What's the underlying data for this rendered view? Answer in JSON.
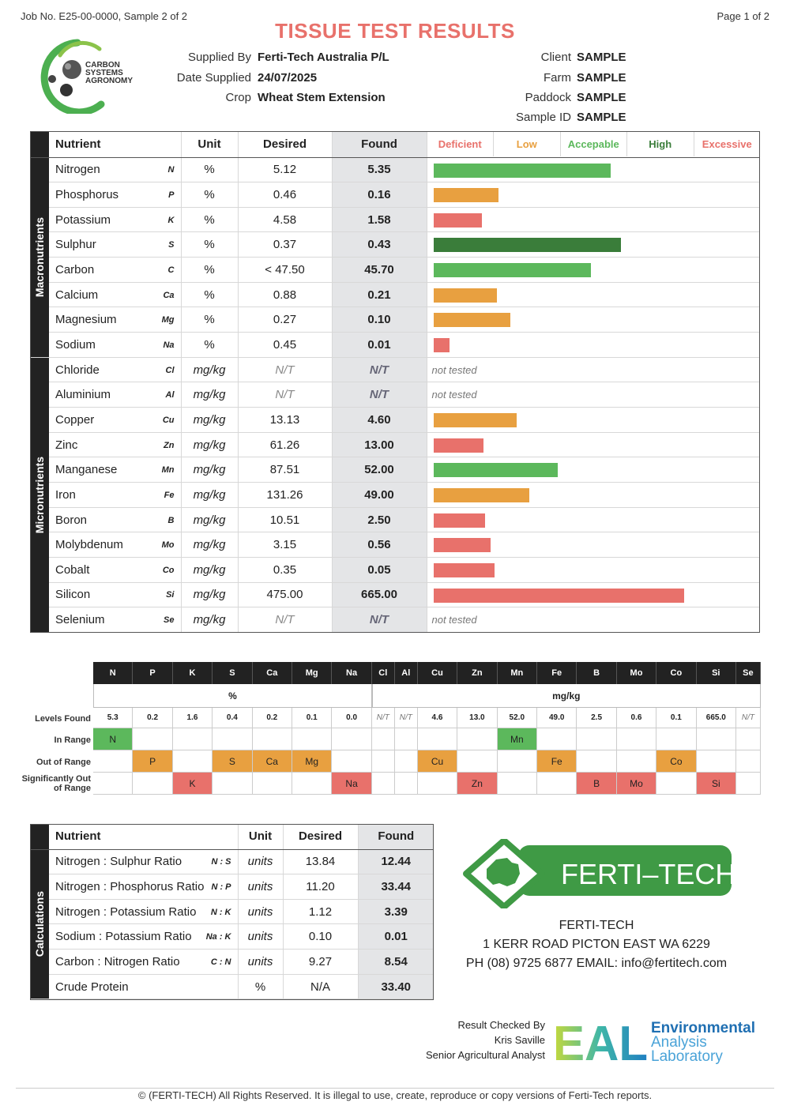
{
  "header": {
    "job": "Job No. E25-00-0000, Sample 2 of 2",
    "page": "Page 1 of 2",
    "title": "TISSUE TEST RESULTS",
    "logo_text": [
      "CARBON",
      "SYSTEMS",
      "AGRONOMY"
    ]
  },
  "meta": {
    "supplied_by_label": "Supplied By",
    "supplied_by": "Ferti-Tech Australia P/L",
    "date_label": "Date Supplied",
    "date": "24/07/2025",
    "crop_label": "Crop",
    "crop": "Wheat Stem Extension",
    "client_label": "Client",
    "client": "SAMPLE",
    "farm_label": "Farm",
    "farm": "SAMPLE",
    "paddock_label": "Paddock",
    "paddock": "SAMPLE",
    "sample_label": "Sample ID",
    "sample": "SAMPLE"
  },
  "main_table": {
    "headers": {
      "nutrient": "Nutrient",
      "unit": "Unit",
      "desired": "Desired",
      "found": "Found"
    },
    "legend": [
      "Deficient",
      "Low",
      "Accepable",
      "High",
      "Excessive"
    ],
    "legend_colors": [
      "#e8716b",
      "#e8a040",
      "#5cb85c",
      "#3a7d3a",
      "#e8716b"
    ],
    "macro_label": "Macronutrients",
    "micro_label": "Micronutrients",
    "not_tested": "not tested",
    "macro": [
      {
        "name": "Nitrogen",
        "sym": "N",
        "unit": "%",
        "desired": "5.12",
        "found": "5.35",
        "level": 0.556,
        "color": "#5cb85c"
      },
      {
        "name": "Phosphorus",
        "sym": "P",
        "unit": "%",
        "desired": "0.46",
        "found": "0.16",
        "level": 0.204,
        "color": "#e8a040"
      },
      {
        "name": "Potassium",
        "sym": "K",
        "unit": "%",
        "desired": "4.58",
        "found": "1.58",
        "level": 0.152,
        "color": "#e8716b"
      },
      {
        "name": "Sulphur",
        "sym": "S",
        "unit": "%",
        "desired": "0.37",
        "found": "0.43",
        "level": 0.588,
        "color": "#3a7d3a"
      },
      {
        "name": "Carbon",
        "sym": "C",
        "unit": "%",
        "desired": "< 47.50",
        "found": "45.70",
        "level": 0.493,
        "color": "#5cb85c"
      },
      {
        "name": "Calcium",
        "sym": "Ca",
        "unit": "%",
        "desired": "0.88",
        "found": "0.21",
        "level": 0.199,
        "color": "#e8a040"
      },
      {
        "name": "Magnesium",
        "sym": "Mg",
        "unit": "%",
        "desired": "0.27",
        "found": "0.10",
        "level": 0.242,
        "color": "#e8a040"
      },
      {
        "name": "Sodium",
        "sym": "Na",
        "unit": "%",
        "desired": "0.45",
        "found": "0.01",
        "level": 0.05,
        "color": "#e8716b"
      }
    ],
    "micro": [
      {
        "name": "Chloride",
        "sym": "Cl",
        "unit": "mg/kg",
        "desired": "N/T",
        "found": "N/T",
        "level": null,
        "color": ""
      },
      {
        "name": "Aluminium",
        "sym": "Al",
        "unit": "mg/kg",
        "desired": "N/T",
        "found": "N/T",
        "level": null,
        "color": ""
      },
      {
        "name": "Copper",
        "sym": "Cu",
        "unit": "mg/kg",
        "desired": "13.13",
        "found": "4.60",
        "level": 0.26,
        "color": "#e8a040"
      },
      {
        "name": "Zinc",
        "sym": "Zn",
        "unit": "mg/kg",
        "desired": "61.26",
        "found": "13.00",
        "level": 0.156,
        "color": "#e8716b"
      },
      {
        "name": "Manganese",
        "sym": "Mn",
        "unit": "mg/kg",
        "desired": "87.51",
        "found": "52.00",
        "level": 0.391,
        "color": "#5cb85c"
      },
      {
        "name": "Iron",
        "sym": "Fe",
        "unit": "mg/kg",
        "desired": "131.26",
        "found": "49.00",
        "level": 0.301,
        "color": "#e8a040"
      },
      {
        "name": "Boron",
        "sym": "B",
        "unit": "mg/kg",
        "desired": "10.51",
        "found": "2.50",
        "level": 0.161,
        "color": "#e8716b"
      },
      {
        "name": "Molybdenum",
        "sym": "Mo",
        "unit": "mg/kg",
        "desired": "3.15",
        "found": "0.56",
        "level": 0.18,
        "color": "#e8716b"
      },
      {
        "name": "Cobalt",
        "sym": "Co",
        "unit": "mg/kg",
        "desired": "0.35",
        "found": "0.05",
        "level": 0.192,
        "color": "#e8716b"
      },
      {
        "name": "Silicon",
        "sym": "Si",
        "unit": "mg/kg",
        "desired": "475.00",
        "found": "665.00",
        "level": 0.787,
        "color": "#e8716b"
      },
      {
        "name": "Selenium",
        "sym": "Se",
        "unit": "mg/kg",
        "desired": "N/T",
        "found": "N/T",
        "level": null,
        "color": ""
      }
    ]
  },
  "summary": {
    "row_labels": {
      "levels": "Levels Found",
      "in_range": "In Range",
      "out": "Out of Range",
      "sig": "Significantly Out of Range"
    },
    "unit_pct": "%",
    "unit_mgkg": "mg/kg",
    "columns": [
      {
        "sym": "N",
        "level": "5.3",
        "cat": 1
      },
      {
        "sym": "P",
        "level": "0.2",
        "cat": 2
      },
      {
        "sym": "K",
        "level": "1.6",
        "cat": 3
      },
      {
        "sym": "S",
        "level": "0.4",
        "cat": 2
      },
      {
        "sym": "Ca",
        "level": "0.2",
        "cat": 2
      },
      {
        "sym": "Mg",
        "level": "0.1",
        "cat": 2
      },
      {
        "sym": "Na",
        "level": "0.0",
        "cat": 3
      },
      {
        "sym": "Cl",
        "level": "N/T",
        "cat": 0
      },
      {
        "sym": "Al",
        "level": "N/T",
        "cat": 0
      },
      {
        "sym": "Cu",
        "level": "4.6",
        "cat": 2
      },
      {
        "sym": "Zn",
        "level": "13.0",
        "cat": 3
      },
      {
        "sym": "Mn",
        "level": "52.0",
        "cat": 1
      },
      {
        "sym": "Fe",
        "level": "49.0",
        "cat": 2
      },
      {
        "sym": "B",
        "level": "2.5",
        "cat": 3
      },
      {
        "sym": "Mo",
        "level": "0.6",
        "cat": 3
      },
      {
        "sym": "Co",
        "level": "0.1",
        "cat": 2
      },
      {
        "sym": "Si",
        "level": "665.0",
        "cat": 3
      },
      {
        "sym": "Se",
        "level": "N/T",
        "cat": 0
      }
    ],
    "cat_colors": [
      "",
      "#5cb85c",
      "#e8a040",
      "#e8716b"
    ]
  },
  "calc_table": {
    "label": "Calculations",
    "headers": {
      "nutrient": "Nutrient",
      "unit": "Unit",
      "desired": "Desired",
      "found": "Found"
    },
    "rows": [
      {
        "name": "Nitrogen : Sulphur Ratio",
        "sym": "N : S",
        "unit": "units",
        "desired": "13.84",
        "found": "12.44"
      },
      {
        "name": "Nitrogen : Phosphorus Ratio",
        "sym": "N : P",
        "unit": "units",
        "desired": "11.20",
        "found": "33.44"
      },
      {
        "name": "Nitrogen : Potassium Ratio",
        "sym": "N : K",
        "unit": "units",
        "desired": "1.12",
        "found": "3.39"
      },
      {
        "name": "Sodium : Potassium Ratio",
        "sym": "Na : K",
        "unit": "units",
        "desired": "0.10",
        "found": "0.01"
      },
      {
        "name": "Carbon : Nitrogen Ratio",
        "sym": "C : N",
        "unit": "units",
        "desired": "9.27",
        "found": "8.54"
      },
      {
        "name": "Crude Protein",
        "sym": "",
        "unit": "%",
        "desired": "N/A",
        "found": "33.40"
      }
    ]
  },
  "ferti_tech": {
    "logo_text": "FERTI–TECH",
    "name": "FERTI-TECH",
    "address": "1 KERR ROAD PICTON EAST WA 6229",
    "contact": "PH (08) 9725 6877 EMAIL: info@fertitech.com"
  },
  "checked": {
    "line1": "Result Checked By",
    "line2": "Kris Saville",
    "line3": "Senior Agricultural Analyst"
  },
  "eal": {
    "letters": "EAL",
    "word1": "Environmental",
    "word2": "Analysis",
    "word3": "Laboratory"
  },
  "footer": "© (FERTI-TECH) All Rights Reserved. It is illegal to use, create, reproduce or copy versions of Ferti-Tech reports."
}
